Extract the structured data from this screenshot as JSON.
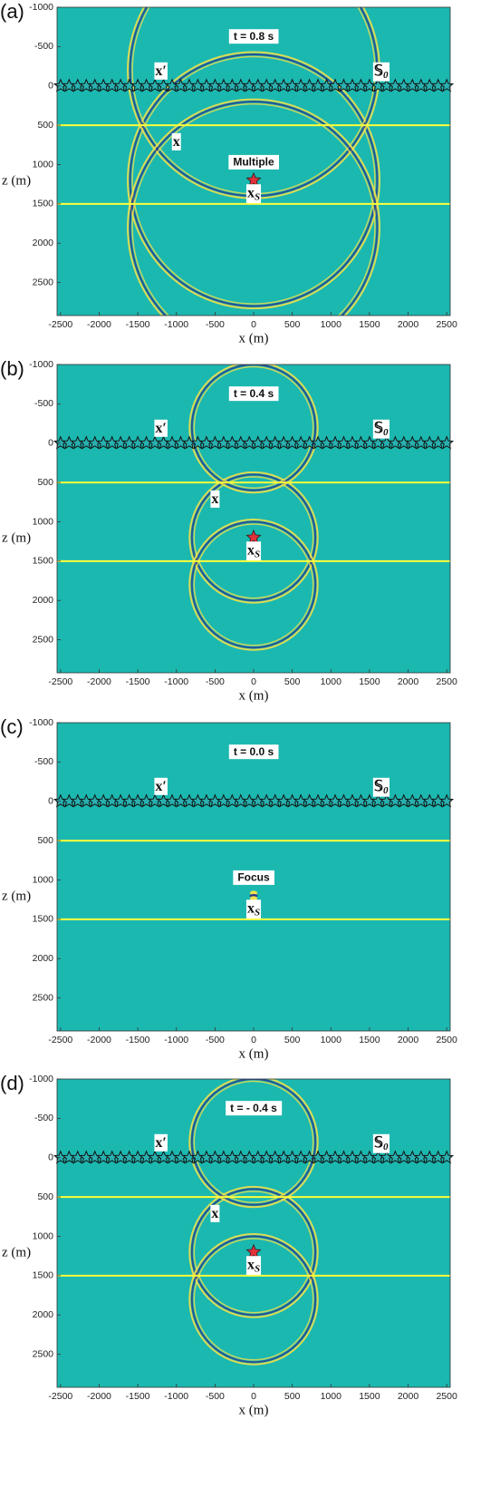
{
  "chart_data": [
    {
      "type": "wavefield",
      "panel_label": "(a)",
      "time_label": "t = 0.8 s",
      "xlabel": "x (m)",
      "ylabel": "z (m)",
      "xlim": [
        -2545,
        2545
      ],
      "ylim": [
        -1000,
        2920
      ],
      "y_reversed": true,
      "xticks": [
        -2500,
        -2000,
        -1500,
        -1000,
        -500,
        0,
        500,
        1000,
        1500,
        2000,
        2500
      ],
      "yticks": [
        -1000,
        -500,
        0,
        500,
        1000,
        1500,
        2000,
        2500
      ],
      "background": "#1bb8b0",
      "interface_color": "#ffff3a",
      "interfaces": [
        500,
        1500
      ],
      "receivers": {
        "z": 0,
        "x_start": -2500,
        "x_end": 2500,
        "count": 46
      },
      "wavefronts": [
        {
          "x": 0,
          "z": 1200,
          "r": 1600
        },
        {
          "x": 0,
          "z": -200,
          "r": 1600
        },
        {
          "x": 0,
          "z": 1800,
          "r": 1600
        }
      ],
      "source": {
        "x": 0,
        "z": 1200
      },
      "annotations": [
        {
          "text": "x′",
          "x": -1200,
          "z": -180
        },
        {
          "text": "𝕊",
          "sub": "0",
          "x": 1650,
          "z": -180
        },
        {
          "text": "x",
          "x": -1000,
          "z": 720
        },
        {
          "text": "x",
          "sub": "S",
          "x": 0,
          "z": 1370
        },
        {
          "text": "Multiple",
          "x": 0,
          "z": 980,
          "box": true
        }
      ]
    },
    {
      "type": "wavefield",
      "panel_label": "(b)",
      "time_label": "t = 0.4 s",
      "xlabel": "x (m)",
      "ylabel": "z (m)",
      "xlim": [
        -2545,
        2545
      ],
      "ylim": [
        -1000,
        2920
      ],
      "y_reversed": true,
      "xticks": [
        -2500,
        -2000,
        -1500,
        -1000,
        -500,
        0,
        500,
        1000,
        1500,
        2000,
        2500
      ],
      "yticks": [
        -1000,
        -500,
        0,
        500,
        1000,
        1500,
        2000,
        2500
      ],
      "background": "#1bb8b0",
      "interface_color": "#ffff3a",
      "interfaces": [
        500,
        1500
      ],
      "receivers": {
        "z": 0,
        "x_start": -2500,
        "x_end": 2500,
        "count": 46
      },
      "wavefronts": [
        {
          "x": 0,
          "z": 1200,
          "r": 800
        },
        {
          "x": 0,
          "z": -200,
          "r": 800
        },
        {
          "x": 0,
          "z": 1800,
          "r": 800
        }
      ],
      "source": {
        "x": 0,
        "z": 1200
      },
      "annotations": [
        {
          "text": "x′",
          "x": -1200,
          "z": -180
        },
        {
          "text": "𝕊",
          "sub": "0",
          "x": 1650,
          "z": -180
        },
        {
          "text": "x",
          "x": -500,
          "z": 720
        },
        {
          "text": "x",
          "sub": "S",
          "x": 0,
          "z": 1370
        }
      ]
    },
    {
      "type": "wavefield",
      "panel_label": "(c)",
      "time_label": "t = 0.0 s",
      "xlabel": "x (m)",
      "ylabel": "z (m)",
      "xlim": [
        -2545,
        2545
      ],
      "ylim": [
        -1000,
        2920
      ],
      "y_reversed": true,
      "xticks": [
        -2500,
        -2000,
        -1500,
        -1000,
        -500,
        0,
        500,
        1000,
        1500,
        2000,
        2500
      ],
      "yticks": [
        -1000,
        -500,
        0,
        500,
        1000,
        1500,
        2000,
        2500
      ],
      "background": "#1bb8b0",
      "interface_color": "#ffff3a",
      "interfaces": [
        500,
        1500
      ],
      "receivers": {
        "z": 0,
        "x_start": -2500,
        "x_end": 2500,
        "count": 46
      },
      "focus": {
        "x": 0,
        "z": 1200
      },
      "annotations": [
        {
          "text": "x′",
          "x": -1200,
          "z": -180
        },
        {
          "text": "𝕊",
          "sub": "0",
          "x": 1650,
          "z": -180
        },
        {
          "text": "x",
          "sub": "S",
          "x": 0,
          "z": 1370
        },
        {
          "text": "Focus",
          "x": 0,
          "z": 980,
          "box": true
        }
      ]
    },
    {
      "type": "wavefield",
      "panel_label": "(d)",
      "time_label": "t = - 0.4 s",
      "xlabel": "x (m)",
      "ylabel": "z (m)",
      "xlim": [
        -2545,
        2545
      ],
      "ylim": [
        -1000,
        2920
      ],
      "y_reversed": true,
      "xticks": [
        -2500,
        -2000,
        -1500,
        -1000,
        -500,
        0,
        500,
        1000,
        1500,
        2000,
        2500
      ],
      "yticks": [
        -1000,
        -500,
        0,
        500,
        1000,
        1500,
        2000,
        2500
      ],
      "background": "#1bb8b0",
      "interface_color": "#ffff3a",
      "interfaces": [
        500,
        1500
      ],
      "receivers": {
        "z": 0,
        "x_start": -2500,
        "x_end": 2500,
        "count": 46
      },
      "wavefronts": [
        {
          "x": 0,
          "z": 1200,
          "r": 800
        },
        {
          "x": 0,
          "z": -200,
          "r": 800
        },
        {
          "x": 0,
          "z": 1800,
          "r": 800
        }
      ],
      "source": {
        "x": 0,
        "z": 1200
      },
      "annotations": [
        {
          "text": "x′",
          "x": -1200,
          "z": -180
        },
        {
          "text": "𝕊",
          "sub": "0",
          "x": 1650,
          "z": -180
        },
        {
          "text": "x",
          "x": -500,
          "z": 720
        },
        {
          "text": "x",
          "sub": "S",
          "x": 0,
          "z": 1370
        }
      ]
    }
  ]
}
